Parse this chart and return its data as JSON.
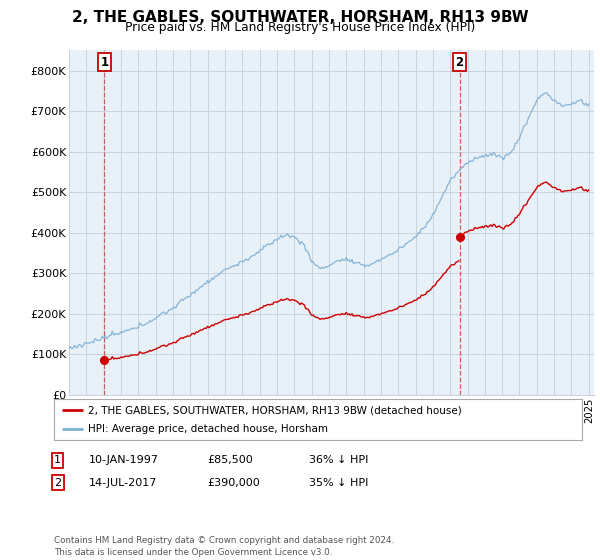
{
  "title": "2, THE GABLES, SOUTHWATER, HORSHAM, RH13 9BW",
  "subtitle": "Price paid vs. HM Land Registry's House Price Index (HPI)",
  "ylim": [
    0,
    850000
  ],
  "yticks": [
    0,
    100000,
    200000,
    300000,
    400000,
    500000,
    600000,
    700000,
    800000
  ],
  "ytick_labels": [
    "£0",
    "£100K",
    "£200K",
    "£300K",
    "£400K",
    "£500K",
    "£600K",
    "£700K",
    "£800K"
  ],
  "purchase1_year": 1997.04,
  "purchase1_price": 85500,
  "purchase2_year": 2017.54,
  "purchase2_price": 390000,
  "legend_property": "2, THE GABLES, SOUTHWATER, HORSHAM, RH13 9BW (detached house)",
  "legend_hpi": "HPI: Average price, detached house, Horsham",
  "footer": "Contains HM Land Registry data © Crown copyright and database right 2024.\nThis data is licensed under the Open Government Licence v3.0.",
  "property_color": "#cc0000",
  "hpi_color": "#7bafd4",
  "bg_chart": "#e8f0f8",
  "bg_fig": "#ffffff",
  "grid_color": "#c8d4e0"
}
